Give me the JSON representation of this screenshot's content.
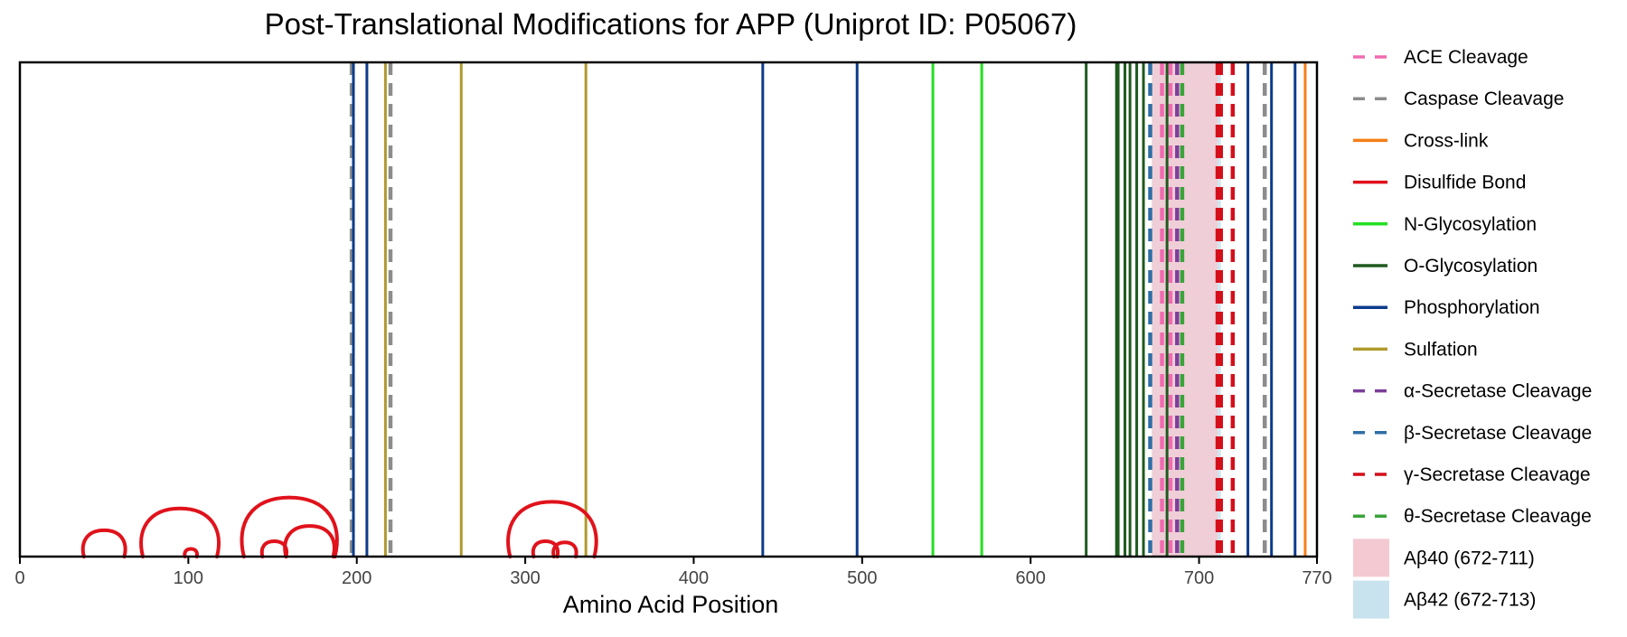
{
  "chart_data": {
    "type": "line",
    "title": "Post-Translational Modifications for APP (Uniprot ID: P05067)",
    "xlabel": "Amino Acid Position",
    "ylabel": "",
    "xlim": [
      0,
      770
    ],
    "xticks": [
      0,
      100,
      200,
      300,
      400,
      500,
      600,
      700,
      770
    ],
    "grid": false,
    "legend_position": "right",
    "regions": [
      {
        "name": "Aβ40 (672-711)",
        "start": 672,
        "end": 711,
        "color": "#f4c9d2"
      },
      {
        "name": "Aβ42 (672-713)",
        "start": 672,
        "end": 713,
        "color": "#c8e3ee"
      }
    ],
    "series": [
      {
        "name": "ACE Cleavage",
        "color": "#f06bb0",
        "style": "dashed",
        "positions": [
          678,
          683
        ]
      },
      {
        "name": "Caspase Cleavage",
        "color": "#8c8c8c",
        "style": "dashed",
        "positions": [
          197,
          220,
          739
        ]
      },
      {
        "name": "Cross-link",
        "color": "#f57f17",
        "style": "solid",
        "positions": [
          763
        ]
      },
      {
        "name": "Disulfide Bond",
        "color": "#e0121b",
        "style": "solid",
        "bonds": [
          [
            38,
            62
          ],
          [
            73,
            117
          ],
          [
            98,
            105
          ],
          [
            133,
            187
          ],
          [
            144,
            158
          ],
          [
            158,
            186
          ],
          [
            291,
            341
          ],
          [
            305,
            319
          ],
          [
            317,
            330
          ]
        ]
      },
      {
        "name": "N-Glycosylation",
        "color": "#22e022",
        "style": "solid",
        "positions": [
          542,
          571
        ]
      },
      {
        "name": "O-Glycosylation",
        "color": "#1f5a1f",
        "style": "solid",
        "positions": [
          633,
          651,
          652,
          656,
          659,
          663,
          667,
          681
        ]
      },
      {
        "name": "Phosphorylation",
        "color": "#0d3b8c",
        "style": "solid",
        "positions": [
          198,
          206,
          441,
          497,
          729,
          743,
          757
        ]
      },
      {
        "name": "Sulfation",
        "color": "#b09a2e",
        "style": "solid",
        "positions": [
          217,
          262,
          336
        ]
      },
      {
        "name": "α-Secretase Cleavage",
        "color": "#7b3f9a",
        "style": "dashed",
        "positions": [
          687
        ]
      },
      {
        "name": "β-Secretase Cleavage",
        "color": "#2f6ea6",
        "style": "dashed",
        "positions": [
          671
        ]
      },
      {
        "name": "γ-Secretase Cleavage",
        "color": "#d40f1a",
        "style": "dashed",
        "positions": [
          711,
          713,
          720
        ]
      },
      {
        "name": "θ-Secretase Cleavage",
        "color": "#3aa33a",
        "style": "dashed",
        "positions": [
          690
        ]
      }
    ]
  }
}
